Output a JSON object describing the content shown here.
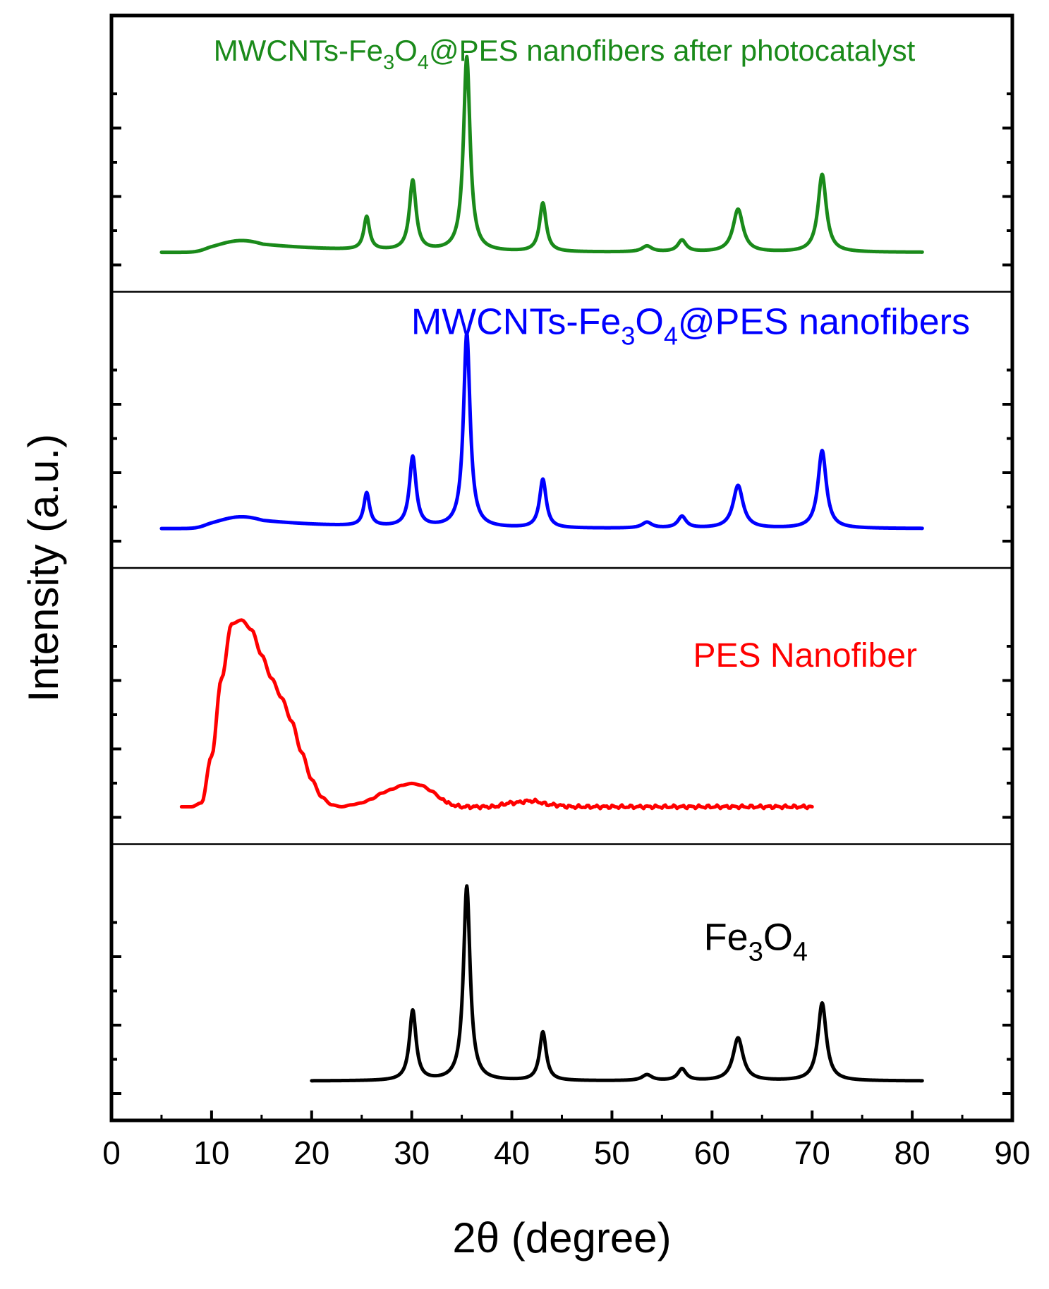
{
  "chart_data": {
    "type": "line",
    "layout": "stacked-panels",
    "xlabel": "2θ (degree)",
    "ylabel": "Intensity (a.u.)",
    "xlim": [
      0,
      90
    ],
    "xticks": [
      0,
      10,
      20,
      30,
      40,
      50,
      60,
      70,
      80,
      90
    ],
    "xtick_labels": [
      "0",
      "10",
      "20",
      "30",
      "40",
      "50",
      "60",
      "70",
      "80",
      "90"
    ],
    "y_tick_labels_shown": false,
    "panels": [
      {
        "id": "mwcnt-after",
        "label_parts": [
          [
            "MWCNTs-Fe",
            "n"
          ],
          [
            "3",
            "sub"
          ],
          [
            "O",
            "n"
          ],
          [
            "4",
            "sub"
          ],
          [
            "@PES nanofibers after photocatalyst",
            "n"
          ]
        ],
        "color": "#1a8a1a",
        "baseline": 0.05,
        "x_range": [
          5,
          81
        ],
        "hump": {
          "center": 13,
          "height": 0.06,
          "width": 3.5,
          "tail": 8
        },
        "peaks": [
          {
            "x": 25.5,
            "h": 0.17,
            "w": 0.35
          },
          {
            "x": 30.1,
            "h": 0.36,
            "w": 0.4
          },
          {
            "x": 35.5,
            "h": 1.0,
            "w": 0.4
          },
          {
            "x": 43.1,
            "h": 0.25,
            "w": 0.4
          },
          {
            "x": 53.5,
            "h": 0.03,
            "w": 0.6
          },
          {
            "x": 57.0,
            "h": 0.06,
            "w": 0.5
          },
          {
            "x": 62.6,
            "h": 0.22,
            "w": 0.6
          },
          {
            "x": 71.0,
            "h": 0.4,
            "w": 0.5
          }
        ]
      },
      {
        "id": "mwcnt",
        "label_parts": [
          [
            "MWCNTs-Fe",
            "n"
          ],
          [
            "3",
            "sub"
          ],
          [
            "O",
            "n"
          ],
          [
            "4",
            "sub"
          ],
          [
            "@PES nanofibers",
            "n"
          ]
        ],
        "color": "#0000ff",
        "baseline": 0.05,
        "x_range": [
          5,
          81
        ],
        "hump": {
          "center": 13,
          "height": 0.06,
          "width": 3.5,
          "tail": 8
        },
        "peaks": [
          {
            "x": 25.5,
            "h": 0.17,
            "w": 0.35
          },
          {
            "x": 30.1,
            "h": 0.36,
            "w": 0.4
          },
          {
            "x": 35.5,
            "h": 1.0,
            "w": 0.4
          },
          {
            "x": 43.1,
            "h": 0.25,
            "w": 0.4
          },
          {
            "x": 53.5,
            "h": 0.03,
            "w": 0.6
          },
          {
            "x": 57.0,
            "h": 0.06,
            "w": 0.5
          },
          {
            "x": 62.6,
            "h": 0.22,
            "w": 0.6
          },
          {
            "x": 71.0,
            "h": 0.4,
            "w": 0.5
          }
        ]
      },
      {
        "id": "pes",
        "label_parts": [
          [
            "PES Nanofiber",
            "n"
          ]
        ],
        "color": "#ff0000",
        "baseline": 0.04,
        "x_range": [
          7,
          70
        ],
        "points": [
          [
            7,
            0.04
          ],
          [
            8,
            0.04
          ],
          [
            9,
            0.06
          ],
          [
            10,
            0.3
          ],
          [
            11,
            0.7
          ],
          [
            12,
            0.98
          ],
          [
            13,
            1.0
          ],
          [
            14,
            0.95
          ],
          [
            15,
            0.82
          ],
          [
            16,
            0.7
          ],
          [
            17,
            0.6
          ],
          [
            18,
            0.48
          ],
          [
            19,
            0.32
          ],
          [
            20,
            0.18
          ],
          [
            21,
            0.09
          ],
          [
            22,
            0.05
          ],
          [
            23,
            0.04
          ],
          [
            24,
            0.05
          ],
          [
            25,
            0.06
          ],
          [
            26,
            0.08
          ],
          [
            27,
            0.11
          ],
          [
            28,
            0.13
          ],
          [
            29,
            0.15
          ],
          [
            30,
            0.16
          ],
          [
            31,
            0.15
          ],
          [
            32,
            0.12
          ],
          [
            33,
            0.08
          ],
          [
            34,
            0.05
          ],
          [
            35,
            0.04
          ],
          [
            38,
            0.04
          ],
          [
            40,
            0.06
          ],
          [
            42,
            0.07
          ],
          [
            44,
            0.05
          ],
          [
            46,
            0.04
          ],
          [
            50,
            0.04
          ],
          [
            55,
            0.04
          ],
          [
            60,
            0.04
          ],
          [
            65,
            0.04
          ],
          [
            70,
            0.04
          ]
        ]
      },
      {
        "id": "fe3o4",
        "label_parts": [
          [
            "Fe",
            "n"
          ],
          [
            "3",
            "sub"
          ],
          [
            "O",
            "n"
          ],
          [
            "4",
            "sub"
          ]
        ],
        "color": "#000000",
        "baseline": 0.05,
        "x_range": [
          20,
          81
        ],
        "peaks": [
          {
            "x": 30.1,
            "h": 0.36,
            "w": 0.4
          },
          {
            "x": 35.5,
            "h": 1.0,
            "w": 0.4
          },
          {
            "x": 43.1,
            "h": 0.25,
            "w": 0.4
          },
          {
            "x": 53.5,
            "h": 0.03,
            "w": 0.6
          },
          {
            "x": 57.0,
            "h": 0.06,
            "w": 0.5
          },
          {
            "x": 62.6,
            "h": 0.22,
            "w": 0.6
          },
          {
            "x": 71.0,
            "h": 0.4,
            "w": 0.5
          }
        ]
      }
    ]
  }
}
